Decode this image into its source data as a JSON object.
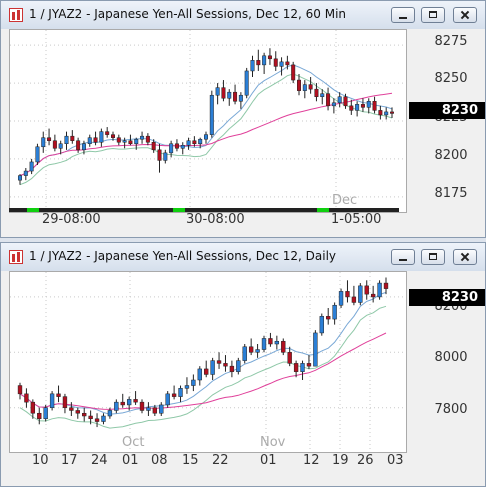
{
  "windows": [
    {
      "title": "1 / JYAZ2 - Japanese Yen-All Sessions, Dec 12, 60 Min",
      "price_axis": [
        "8275",
        "8250",
        "8225",
        "8200",
        "8175"
      ],
      "last_price": "8230",
      "time_labels": [
        "29-08:00",
        "30-08:00",
        "1-05:00"
      ],
      "period_label": "Dec"
    },
    {
      "title": "1 / JYAZ2 - Japanese Yen-All Sessions, Dec 12, Daily",
      "price_axis": [
        "8200",
        "8000",
        "7800"
      ],
      "last_price": "8230",
      "date_labels": [
        "10",
        "17",
        "24",
        "01",
        "08",
        "15",
        "22",
        "01",
        "12",
        "19",
        "26",
        "03"
      ],
      "month_labels": [
        "Oct",
        "Nov"
      ]
    }
  ],
  "chart_data": [
    {
      "type": "candlestick",
      "title": "1 / JYAZ2 - Japanese Yen-All Sessions, Dec 12, 60 Min",
      "ylim": [
        8165,
        8285
      ],
      "yticks": [
        8175,
        8200,
        8225,
        8250,
        8275
      ],
      "x_labels": [
        "29-08:00",
        "30-08:00",
        "1-05:00",
        "Dec"
      ],
      "last": 8230,
      "candles": [
        [
          8186,
          8190,
          8183,
          8189
        ],
        [
          8189,
          8194,
          8186,
          8192
        ],
        [
          8192,
          8200,
          8190,
          8198
        ],
        [
          8198,
          8210,
          8196,
          8208
        ],
        [
          8208,
          8218,
          8204,
          8214
        ],
        [
          8214,
          8220,
          8209,
          8212
        ],
        [
          8212,
          8216,
          8205,
          8207
        ],
        [
          8207,
          8212,
          8203,
          8210
        ],
        [
          8210,
          8218,
          8206,
          8215
        ],
        [
          8215,
          8219,
          8210,
          8212
        ],
        [
          8212,
          8214,
          8204,
          8206
        ],
        [
          8206,
          8212,
          8203,
          8210
        ],
        [
          8210,
          8216,
          8208,
          8214
        ],
        [
          8214,
          8218,
          8209,
          8211
        ],
        [
          8211,
          8220,
          8208,
          8218
        ],
        [
          8218,
          8221,
          8214,
          8216
        ],
        [
          8216,
          8218,
          8212,
          8214
        ],
        [
          8214,
          8216,
          8209,
          8211
        ],
        [
          8211,
          8214,
          8207,
          8212
        ],
        [
          8212,
          8216,
          8209,
          8210
        ],
        [
          8210,
          8214,
          8206,
          8213
        ],
        [
          8213,
          8218,
          8210,
          8215
        ],
        [
          8215,
          8217,
          8209,
          8211
        ],
        [
          8211,
          8213,
          8204,
          8206
        ],
        [
          8206,
          8210,
          8191,
          8199
        ],
        [
          8199,
          8206,
          8197,
          8204
        ],
        [
          8204,
          8212,
          8201,
          8210
        ],
        [
          8210,
          8213,
          8205,
          8207
        ],
        [
          8207,
          8211,
          8203,
          8209
        ],
        [
          8209,
          8214,
          8206,
          8212
        ],
        [
          8212,
          8215,
          8208,
          8210
        ],
        [
          8210,
          8214,
          8207,
          8213
        ],
        [
          8213,
          8218,
          8210,
          8216
        ],
        [
          8216,
          8245,
          8214,
          8242
        ],
        [
          8242,
          8250,
          8236,
          8247
        ],
        [
          8247,
          8252,
          8238,
          8240
        ],
        [
          8240,
          8246,
          8235,
          8244
        ],
        [
          8244,
          8249,
          8236,
          8238
        ],
        [
          8238,
          8244,
          8233,
          8242
        ],
        [
          8242,
          8260,
          8240,
          8258
        ],
        [
          8258,
          8268,
          8254,
          8265
        ],
        [
          8265,
          8272,
          8258,
          8262
        ],
        [
          8262,
          8270,
          8256,
          8268
        ],
        [
          8268,
          8273,
          8262,
          8266
        ],
        [
          8266,
          8271,
          8258,
          8261
        ],
        [
          8261,
          8267,
          8255,
          8264
        ],
        [
          8264,
          8268,
          8259,
          8262
        ],
        [
          8262,
          8264,
          8250,
          8252
        ],
        [
          8252,
          8256,
          8242,
          8245
        ],
        [
          8245,
          8252,
          8240,
          8249
        ],
        [
          8249,
          8254,
          8243,
          8246
        ],
        [
          8246,
          8250,
          8238,
          8241
        ],
        [
          8241,
          8246,
          8236,
          8243
        ],
        [
          8243,
          8247,
          8232,
          8235
        ],
        [
          8235,
          8240,
          8230,
          8237
        ],
        [
          8237,
          8244,
          8234,
          8241
        ],
        [
          8241,
          8243,
          8233,
          8235
        ],
        [
          8235,
          8239,
          8229,
          8232
        ],
        [
          8232,
          8238,
          8228,
          8236
        ],
        [
          8236,
          8240,
          8231,
          8234
        ],
        [
          8234,
          8240,
          8230,
          8238
        ],
        [
          8238,
          8241,
          8230,
          8232
        ],
        [
          8232,
          8235,
          8226,
          8229
        ],
        [
          8229,
          8234,
          8226,
          8231
        ],
        [
          8231,
          8234,
          8227,
          8230
        ]
      ]
    },
    {
      "type": "candlestick",
      "title": "1 / JYAZ2 - Japanese Yen-All Sessions, Dec 12, Daily",
      "ylim": [
        7640,
        8290
      ],
      "yticks": [
        7800,
        8000,
        8200
      ],
      "x_labels": [
        "10",
        "17",
        "24",
        "01",
        "08",
        "15",
        "22",
        "01",
        "12",
        "19",
        "26",
        "03"
      ],
      "month_labels": [
        "Oct",
        "Nov"
      ],
      "last": 8230,
      "candles": [
        [
          7880,
          7890,
          7830,
          7850
        ],
        [
          7850,
          7870,
          7800,
          7820
        ],
        [
          7820,
          7830,
          7760,
          7780
        ],
        [
          7780,
          7800,
          7740,
          7760
        ],
        [
          7760,
          7810,
          7750,
          7800
        ],
        [
          7800,
          7860,
          7790,
          7850
        ],
        [
          7850,
          7880,
          7820,
          7840
        ],
        [
          7840,
          7850,
          7780,
          7800
        ],
        [
          7800,
          7820,
          7770,
          7790
        ],
        [
          7790,
          7800,
          7760,
          7780
        ],
        [
          7780,
          7800,
          7750,
          7770
        ],
        [
          7770,
          7790,
          7740,
          7760
        ],
        [
          7760,
          7780,
          7730,
          7750
        ],
        [
          7750,
          7780,
          7740,
          7770
        ],
        [
          7770,
          7800,
          7760,
          7790
        ],
        [
          7790,
          7830,
          7780,
          7820
        ],
        [
          7820,
          7850,
          7800,
          7810
        ],
        [
          7810,
          7840,
          7790,
          7830
        ],
        [
          7830,
          7860,
          7810,
          7820
        ],
        [
          7820,
          7830,
          7780,
          7790
        ],
        [
          7790,
          7820,
          7770,
          7800
        ],
        [
          7800,
          7810,
          7770,
          7780
        ],
        [
          7780,
          7820,
          7770,
          7810
        ],
        [
          7810,
          7860,
          7800,
          7850
        ],
        [
          7850,
          7880,
          7830,
          7840
        ],
        [
          7840,
          7880,
          7820,
          7870
        ],
        [
          7870,
          7910,
          7850,
          7880
        ],
        [
          7880,
          7920,
          7860,
          7900
        ],
        [
          7900,
          7950,
          7880,
          7940
        ],
        [
          7940,
          7970,
          7910,
          7920
        ],
        [
          7920,
          7980,
          7900,
          7970
        ],
        [
          7970,
          8000,
          7940,
          7960
        ],
        [
          7960,
          7990,
          7930,
          7950
        ],
        [
          7950,
          7970,
          7910,
          7930
        ],
        [
          7930,
          7980,
          7920,
          7970
        ],
        [
          7970,
          8030,
          7960,
          8020
        ],
        [
          8020,
          8050,
          7990,
          8000
        ],
        [
          8000,
          8030,
          7980,
          8010
        ],
        [
          8010,
          8060,
          8000,
          8050
        ],
        [
          8050,
          8070,
          8020,
          8030
        ],
        [
          8030,
          8060,
          8010,
          8040
        ],
        [
          8040,
          8050,
          7990,
          8000
        ],
        [
          8000,
          8020,
          7950,
          7960
        ],
        [
          7960,
          7970,
          7910,
          7930
        ],
        [
          7930,
          7970,
          7900,
          7960
        ],
        [
          7960,
          7990,
          7940,
          7950
        ],
        [
          7950,
          8080,
          7950,
          8070
        ],
        [
          8070,
          8140,
          8060,
          8130
        ],
        [
          8130,
          8160,
          8100,
          8120
        ],
        [
          8120,
          8180,
          8100,
          8170
        ],
        [
          8170,
          8230,
          8160,
          8220
        ],
        [
          8220,
          8260,
          8180,
          8200
        ],
        [
          8200,
          8240,
          8170,
          8180
        ],
        [
          8180,
          8250,
          8170,
          8240
        ],
        [
          8240,
          8260,
          8190,
          8210
        ],
        [
          8210,
          8240,
          8180,
          8200
        ],
        [
          8200,
          8260,
          8190,
          8250
        ],
        [
          8250,
          8270,
          8210,
          8230
        ]
      ]
    }
  ]
}
